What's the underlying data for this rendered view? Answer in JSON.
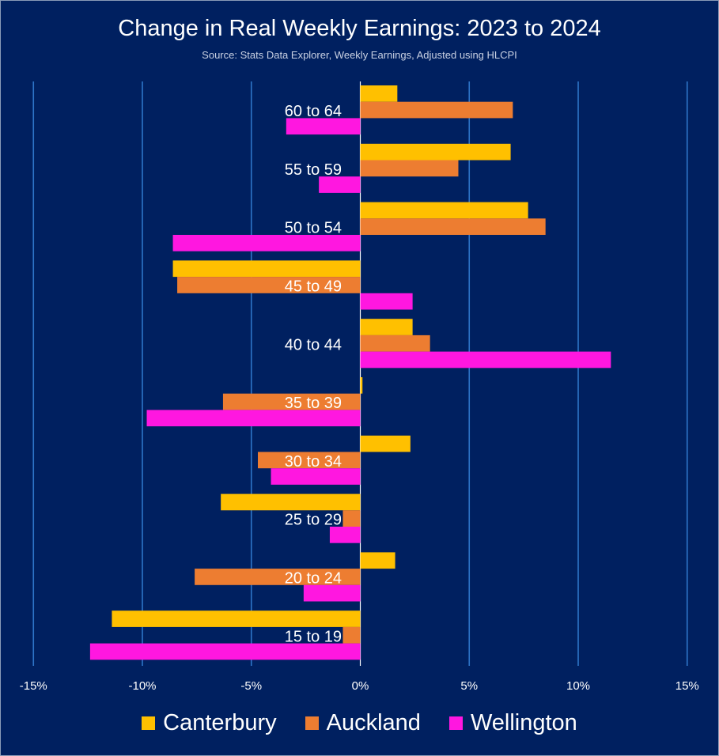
{
  "chart_data": {
    "type": "bar",
    "orientation": "horizontal",
    "title": "Change in Real Weekly Earnings: 2023 to 2024",
    "subtitle": "Source: Stats Data Explorer, Weekly Earnings, Adjusted using HLCPI",
    "xlabel": "",
    "ylabel": "",
    "xlim": [
      -15,
      15
    ],
    "xticks": [
      -15,
      -10,
      -5,
      0,
      5,
      10,
      15
    ],
    "xtick_labels": [
      "-15%",
      "-10%",
      "-5%",
      "0%",
      "5%",
      "10%",
      "15%"
    ],
    "grid": "vertical",
    "legend_position": "bottom",
    "categories": [
      "60 to 64",
      "55 to 59",
      "50 to 54",
      "45 to 49",
      "40 to 44",
      "35 to 39",
      "30 to 34",
      "25 to 29",
      "20 to 24",
      "15 to 19"
    ],
    "series": [
      {
        "name": "Canterbury",
        "color": "#ffc000",
        "values": [
          1.7,
          6.9,
          7.7,
          -8.6,
          2.4,
          0.1,
          2.3,
          -6.4,
          1.6,
          -11.4
        ]
      },
      {
        "name": "Auckland",
        "color": "#ed7d31",
        "values": [
          7.0,
          4.5,
          8.5,
          -8.4,
          3.2,
          -6.3,
          -4.7,
          -0.8,
          -7.6,
          -0.8
        ]
      },
      {
        "name": "Wellington",
        "color": "#ff17e0",
        "values": [
          -3.4,
          -1.9,
          -8.6,
          2.4,
          11.5,
          -9.8,
          -4.1,
          -1.4,
          -2.6,
          -12.4
        ]
      }
    ]
  }
}
